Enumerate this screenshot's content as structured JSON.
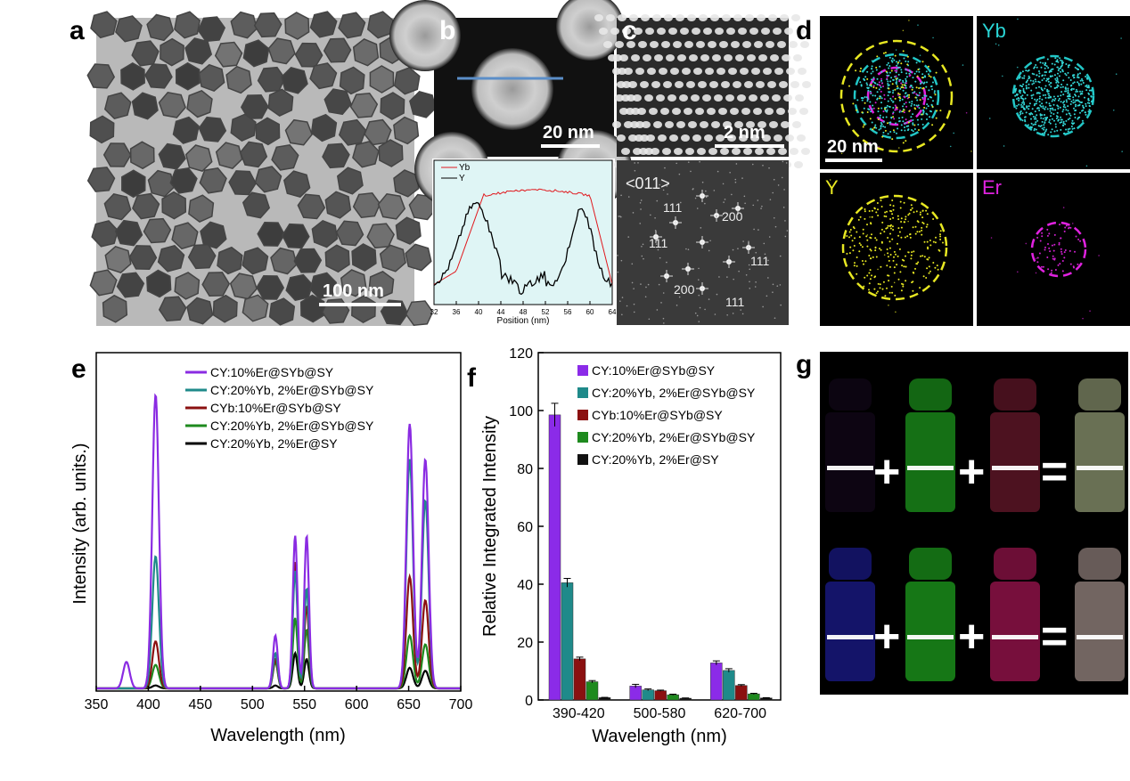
{
  "panels": {
    "a": {
      "label": "a",
      "scale": "100 nm"
    },
    "b": {
      "label": "b",
      "scale": "20 nm"
    },
    "c": {
      "label": "c",
      "scale": "2 nm"
    },
    "d": {
      "label": "d",
      "scale": "20 nm",
      "maps": [
        "Yb",
        "Y",
        "Er"
      ]
    },
    "e": {
      "label": "e"
    },
    "f": {
      "label": "f"
    },
    "g": {
      "label": "g"
    }
  },
  "line_profile": {
    "legend": [
      "Yb",
      "Y"
    ],
    "xlabel": "Position (nm)",
    "xticks": [
      "32",
      "36",
      "40",
      "44",
      "48",
      "52",
      "56",
      "60",
      "64"
    ],
    "colors": {
      "Yb": "#e0191e",
      "Y": "#000000"
    }
  },
  "fft": {
    "zone": "<011>",
    "spots": [
      "111",
      "200",
      "111",
      "111",
      "200",
      "111"
    ]
  },
  "chart_data": [
    {
      "type": "line",
      "panel": "e",
      "xlabel": "Wavelength (nm)",
      "ylabel": "Intensity (arb. units.)",
      "xlim": [
        350,
        700
      ],
      "xticks": [
        "350",
        "400",
        "450",
        "500",
        "550",
        "600",
        "650",
        "700"
      ],
      "legend": [
        "CY:10%Er@SYb@SY",
        "CY:20%Yb, 2%Er@SYb@SY",
        "CYb:10%Er@SYb@SY",
        "CY:20%Yb, 2%Er@SYb@SY",
        "CY:20%Yb, 2%Er@SY"
      ],
      "series": [
        {
          "name": "CY:10%Er@SYb@SY",
          "color": "#8a2be2",
          "peaks": {
            "379": 0.09,
            "407": 1.0,
            "522": 0.18,
            "541": 0.52,
            "552": 0.52,
            "651": 0.9,
            "666": 0.78
          }
        },
        {
          "name": "CY:20%Yb, 2%Er@SYb@SY",
          "color": "#1f8a8a",
          "peaks": {
            "407": 0.45,
            "522": 0.12,
            "541": 0.4,
            "552": 0.34,
            "651": 0.78,
            "666": 0.64
          }
        },
        {
          "name": "CYb:10%Er@SYb@SY",
          "color": "#8b1010",
          "peaks": {
            "407": 0.16,
            "522": 0.1,
            "541": 0.43,
            "552": 0.28,
            "651": 0.38,
            "666": 0.3
          }
        },
        {
          "name": "CY:20%Yb, 2%Er@SYb@SY",
          "color": "#1e8a1e",
          "peaks": {
            "407": 0.08,
            "522": 0.09,
            "541": 0.24,
            "552": 0.2,
            "651": 0.18,
            "666": 0.15
          }
        },
        {
          "name": "CY:20%Yb, 2%Er@SY",
          "color": "#000000",
          "peaks": {
            "407": 0.01,
            "522": 0.01,
            "541": 0.12,
            "552": 0.1,
            "651": 0.07,
            "666": 0.06
          }
        }
      ]
    },
    {
      "type": "bar",
      "panel": "f",
      "xlabel": "Wavelength (nm)",
      "ylabel": "Relative Integrated Intensity",
      "ylim": [
        0,
        120
      ],
      "yticks": [
        "0",
        "20",
        "40",
        "60",
        "80",
        "100",
        "120"
      ],
      "categories": [
        "390-420",
        "500-580",
        "620-700"
      ],
      "series": [
        {
          "name": "CY:10%Er@SYb@SY",
          "color": "#8b2be8",
          "values": [
            98.5,
            4.8,
            12.8
          ],
          "errors": [
            4,
            0.6,
            0.7
          ]
        },
        {
          "name": "CY:20%Yb, 2%Er@SYb@SY",
          "color": "#1f8a8a",
          "values": [
            40.5,
            3.5,
            10.2
          ],
          "errors": [
            1.5,
            0.3,
            0.6
          ]
        },
        {
          "name": "CYb:10%Er@SYb@SY",
          "color": "#8b1010",
          "values": [
            14.2,
            3.2,
            5.0
          ],
          "errors": [
            0.6,
            0.2,
            0.3
          ]
        },
        {
          "name": "CY:20%Yb, 2%Er@SYb@SY",
          "color": "#1e8a1e",
          "values": [
            6.3,
            1.8,
            2.1
          ],
          "errors": [
            0.4,
            0.2,
            0.2
          ]
        },
        {
          "name": "CY:20%Yb, 2%Er@SY",
          "color": "#111111",
          "values": [
            0.8,
            0.6,
            0.7
          ],
          "errors": [
            0.1,
            0.1,
            0.1
          ]
        }
      ]
    }
  ],
  "photo_g": {
    "operators": [
      "+",
      "+",
      "="
    ]
  }
}
